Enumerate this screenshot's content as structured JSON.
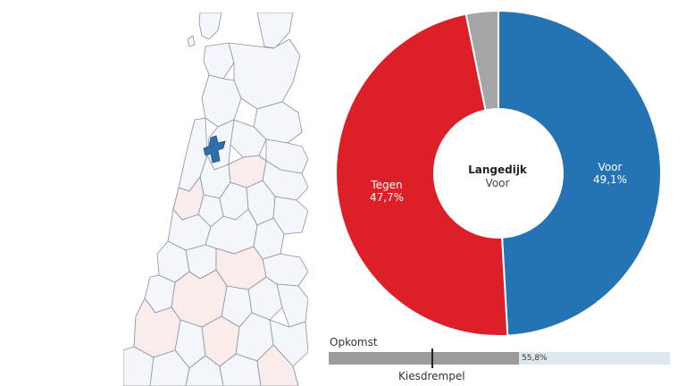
{
  "center": {
    "municipality": "Langedijk",
    "result": "Voor"
  },
  "slices": [
    {
      "label": "Voor",
      "percent": 49.1,
      "value_text": "49,1%",
      "color": "#2474b5"
    },
    {
      "label": "Tegen",
      "percent": 47.7,
      "value_text": "47,7%",
      "color": "#dd2027"
    },
    {
      "label": "",
      "percent": 3.2,
      "value_text": "",
      "color": "#a5a5a5"
    }
  ],
  "turnout": {
    "label": "Opkomst",
    "percent": 55.8,
    "value_text": "55,8%",
    "threshold_label": "Kiesdrempel",
    "threshold_percent": 30,
    "fill_color": "#9b9b9b",
    "track_color": "#dfe7ee"
  },
  "map": {
    "highlight_color": "#2f6fad",
    "region_fill": "#f3f6fa",
    "region_stroke": "#8c929a",
    "contra_fill": "#fbecec"
  }
}
